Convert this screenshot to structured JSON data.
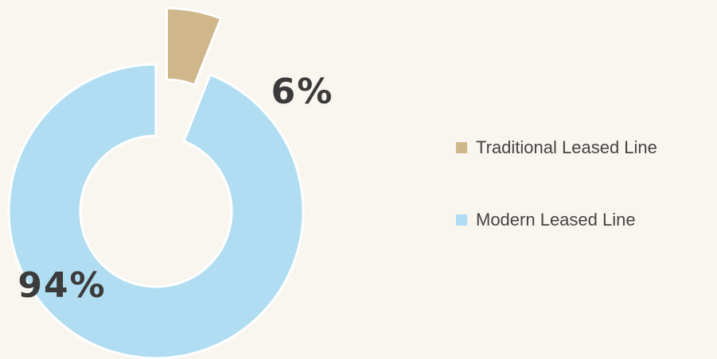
{
  "chart_data": {
    "type": "donut",
    "categories": [
      "Traditional Leased Line",
      "Modern Leased Line"
    ],
    "values": [
      6,
      94
    ],
    "value_labels": [
      "6%",
      "94%"
    ],
    "colors": [
      "#cfb68b",
      "#b0ddf2"
    ]
  }
}
